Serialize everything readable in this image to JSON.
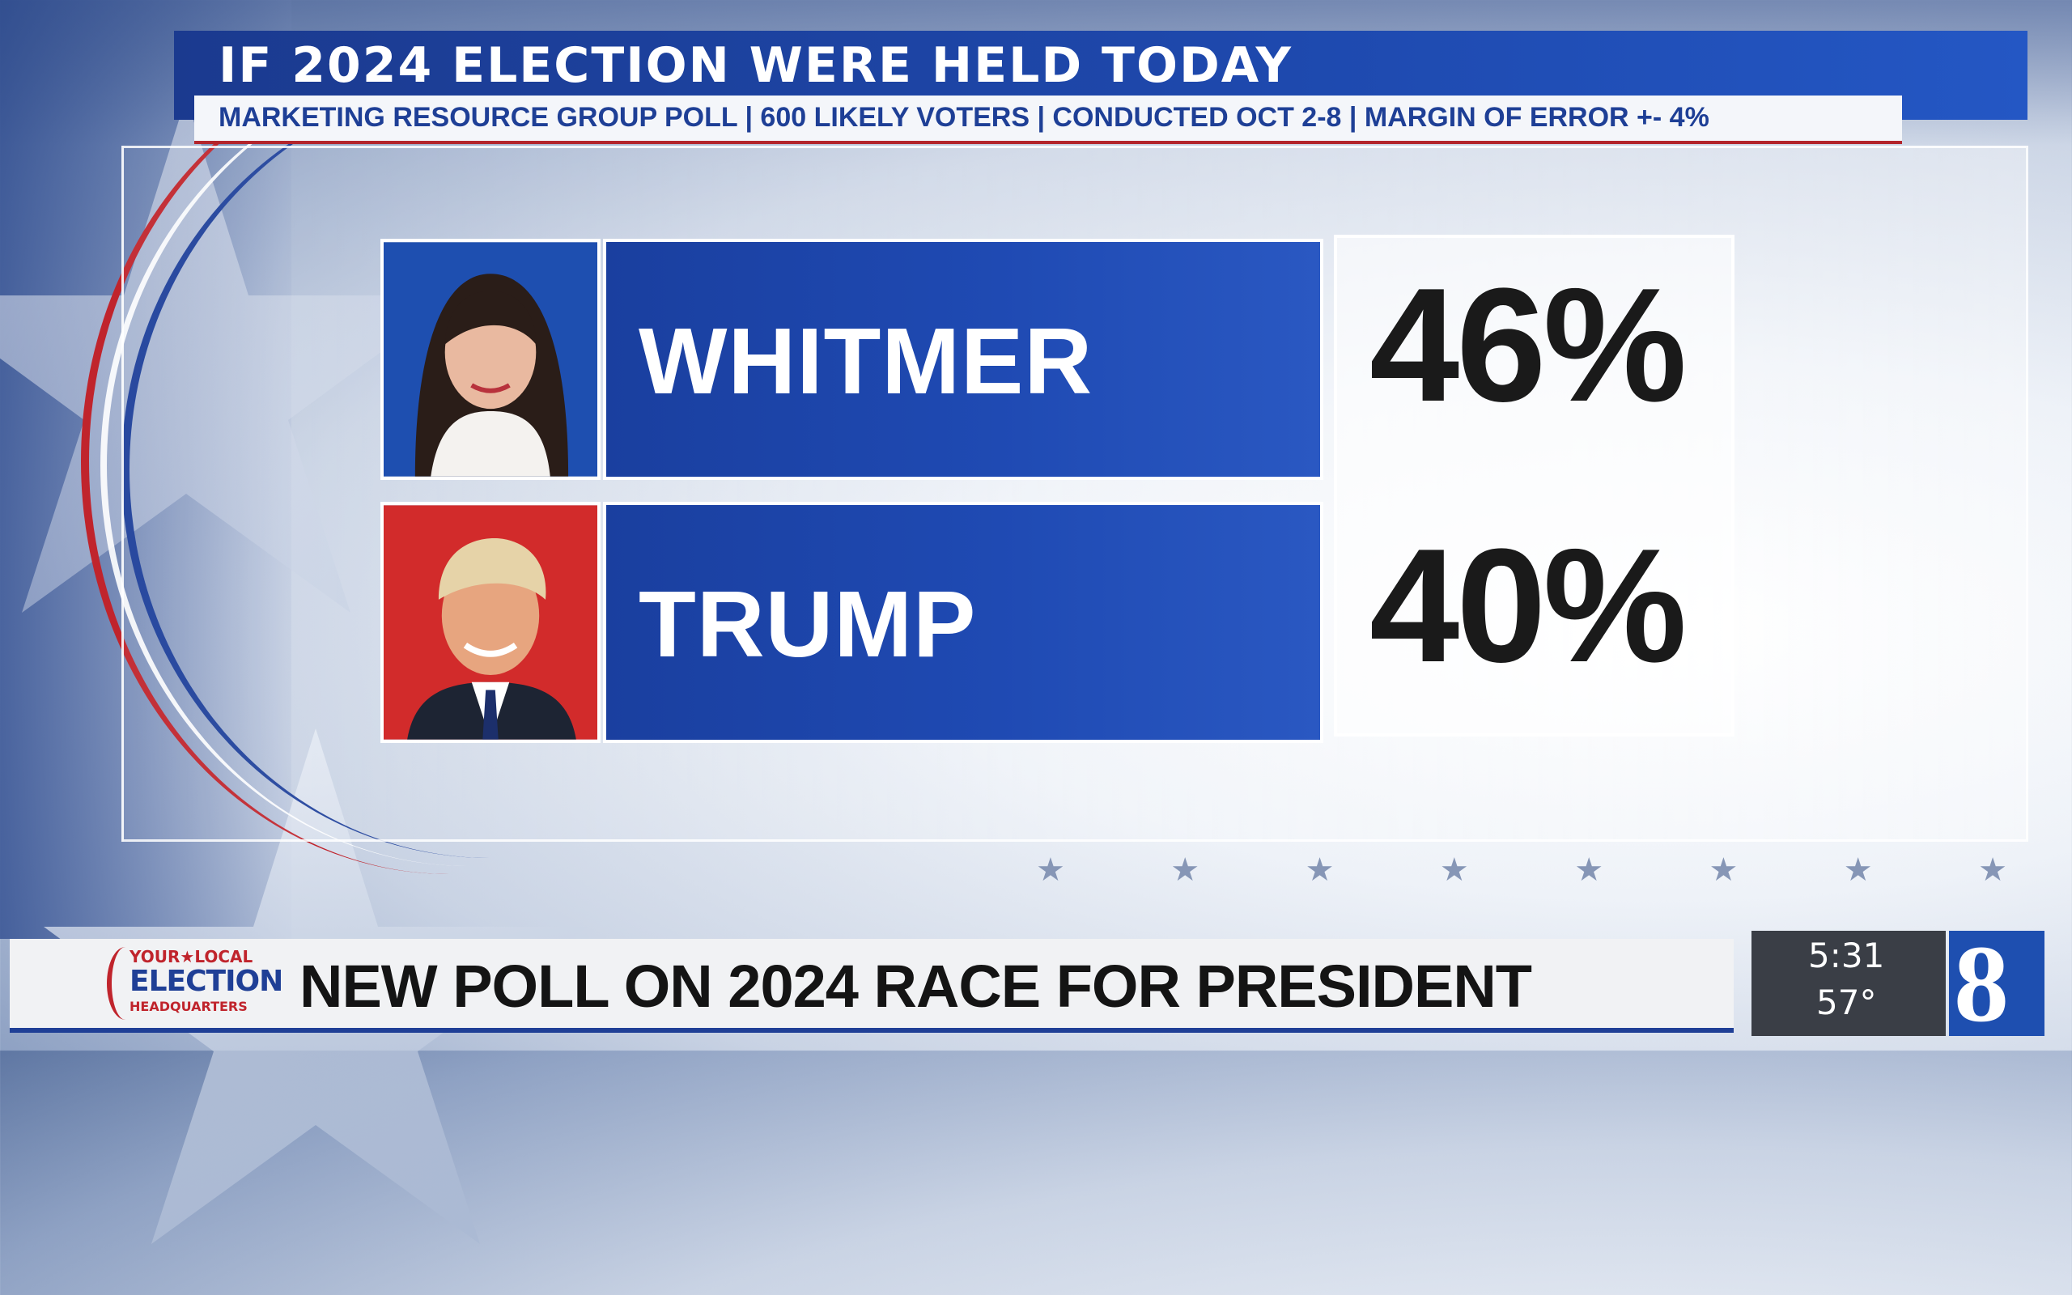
{
  "graphic": {
    "title": "IF 2024 ELECTION WERE HELD TODAY",
    "subtitle": "MARKETING RESOURCE GROUP POLL | 600 LIKELY VOTERS | CONDUCTED OCT 2-8 | MARGIN OF ERROR +- 4%"
  },
  "candidates": [
    {
      "name": "WHITMER",
      "percent": "46%",
      "photo_bg": "#1e4fb0"
    },
    {
      "name": "TRUMP",
      "percent": "40%",
      "photo_bg": "#d22b2b"
    }
  ],
  "lower_third": {
    "logo": {
      "line1": "YOUR★LOCAL",
      "line2": "ELECTION",
      "line3": "HEADQUARTERS"
    },
    "headline": "NEW POLL ON 2024 RACE FOR PRESIDENT"
  },
  "bug": {
    "time": "5:31",
    "temperature": "57°",
    "channel": "8"
  },
  "colors": {
    "brand_blue": "#1f4ab3",
    "accent_red": "#c0242c",
    "text_dark": "#1a1a1a"
  }
}
